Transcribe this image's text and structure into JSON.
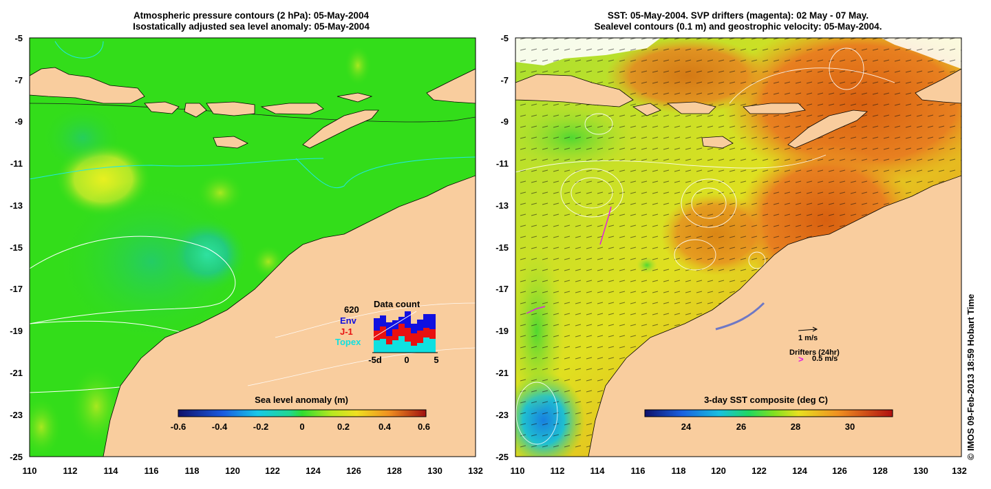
{
  "left_panel": {
    "title_line1": "Atmospheric pressure contours (2 hPa): 05-May-2004",
    "title_line2": "Isostatically adjusted sea level anomaly: 05-May-2004",
    "y_ticks": [
      "-5",
      "-7",
      "-9",
      "-11",
      "-13",
      "-15",
      "-17",
      "-19",
      "-21",
      "-23",
      "-25"
    ],
    "x_ticks": [
      "110",
      "112",
      "114",
      "116",
      "118",
      "120",
      "122",
      "124",
      "126",
      "128",
      "130",
      "132"
    ],
    "colorbar": {
      "title": "Sea level anomaly (m)",
      "ticks": [
        "-0.6",
        "-0.4",
        "-0.2",
        "0",
        "0.2",
        "0.4",
        "0.6"
      ]
    },
    "data_count": {
      "title": "Data count",
      "total": "620",
      "legend": [
        {
          "label": "Env",
          "color": "#1010e0"
        },
        {
          "label": "J-1",
          "color": "#e81010"
        },
        {
          "label": "Topex",
          "color": "#10e0e0"
        }
      ],
      "x_ticks": [
        "-5d",
        "0",
        "5"
      ]
    }
  },
  "right_panel": {
    "title_line1": "SST: 05-May-2004. SVP drifters (magenta): 02 May - 07 May.",
    "title_line2": "Sealevel contours (0.1 m) and geostrophic velocity: 05-May-2004.",
    "y_ticks": [
      "-5",
      "-7",
      "-9",
      "-11",
      "-13",
      "-15",
      "-17",
      "-19",
      "-21",
      "-23",
      "-25"
    ],
    "x_ticks": [
      "110",
      "112",
      "114",
      "116",
      "118",
      "120",
      "122",
      "124",
      "126",
      "128",
      "130",
      "132"
    ],
    "colorbar": {
      "title": "3-day SST composite (deg C)",
      "ticks": [
        "24",
        "26",
        "28",
        "30"
      ]
    },
    "velocity_scale": "1 m/s",
    "drifters_label": "Drifters (24hr)",
    "drifter_speed": "0.5 m/s",
    "drifter_symbol": ">"
  },
  "credit": "© IMOS 09-Feb-2013 18:59 Hobart Time",
  "colors": {
    "land": "#f9cd9e",
    "ocean_green": "#33dd1a",
    "sst_orange": "#e8801a",
    "sst_yellow": "#d8e21a",
    "drifter_magenta": "#e020e0"
  }
}
